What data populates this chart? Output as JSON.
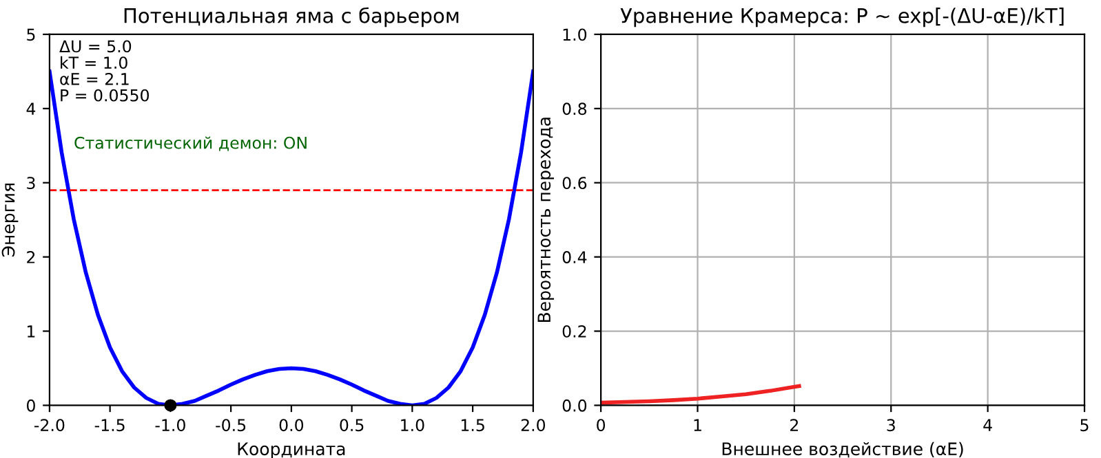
{
  "chart_data": [
    {
      "type": "line",
      "title": "Потенциальная яма с барьером",
      "xlabel": "Координата",
      "ylabel": "Энергия",
      "xlim": [
        -2.0,
        2.0
      ],
      "ylim": [
        0,
        5
      ],
      "xticks": [
        {
          "value": -2,
          "label": "-2.0"
        },
        -1.5,
        {
          "value": -1,
          "label": "-1.0"
        },
        -0.5,
        {
          "value": 0,
          "label": "0.0"
        },
        0.5,
        {
          "value": 1,
          "label": "1.0"
        },
        1.5,
        {
          "value": 2,
          "label": "2.0"
        }
      ],
      "yticks": [
        0,
        1,
        2,
        3,
        4,
        5
      ],
      "grid": false,
      "annotations": [
        "ΔU = 5.0\nkT = 1.0\nαE = 2.1\nP = 0.0550",
        "Статистический демон: ON"
      ],
      "ref_lines": [
        {
          "axis": "y",
          "value": 2.9,
          "color": "#ff0000",
          "line_style": "dashed"
        }
      ],
      "series": [
        {
          "type": "line",
          "color": "#0000ff",
          "x": [
            -2.0,
            -1.9,
            -1.8,
            -1.7,
            -1.6,
            -1.5,
            -1.4,
            -1.3,
            -1.2,
            -1.1,
            -1.0,
            -0.9,
            -0.8,
            -0.7,
            -0.6,
            -0.5,
            -0.4,
            -0.3,
            -0.2,
            -0.1,
            0.0,
            0.1,
            0.2,
            0.3,
            0.4,
            0.5,
            0.6,
            0.7,
            0.8,
            0.9,
            1.0,
            1.1,
            1.2,
            1.3,
            1.4,
            1.5,
            1.6,
            1.7,
            1.8,
            1.9,
            2.0
          ],
          "values": [
            4.5,
            3.41,
            2.51,
            1.79,
            1.22,
            0.78,
            0.46,
            0.24,
            0.1,
            0.02,
            0.0,
            0.02,
            0.06,
            0.13,
            0.2,
            0.28,
            0.35,
            0.41,
            0.46,
            0.49,
            0.5,
            0.49,
            0.46,
            0.41,
            0.35,
            0.28,
            0.2,
            0.13,
            0.06,
            0.02,
            0.0,
            0.02,
            0.1,
            0.24,
            0.46,
            0.78,
            1.22,
            1.79,
            2.51,
            3.41,
            4.5
          ]
        },
        {
          "type": "scatter",
          "color": "#000000",
          "x": [
            -1.0
          ],
          "values": [
            0.0
          ]
        }
      ]
    },
    {
      "type": "line",
      "title": "Уравнение Крамерса: P ~ exp[-(ΔU-αE)/kT]",
      "xlabel": "Внешнее воздействие (αE)",
      "ylabel": "Вероятность перехода",
      "xlim": [
        0,
        5
      ],
      "ylim": [
        0.0,
        1.0
      ],
      "xticks": [
        0,
        1,
        2,
        3,
        4,
        5
      ],
      "yticks": [
        {
          "value": 0,
          "label": "0.0"
        },
        0.2,
        0.4,
        0.6,
        0.8,
        {
          "value": 1,
          "label": "1.0"
        }
      ],
      "grid": true,
      "series": [
        {
          "type": "line",
          "color": "#ee2222",
          "x": [
            0,
            0.25,
            0.5,
            0.75,
            1.0,
            1.25,
            1.5,
            1.75,
            2.0,
            2.05
          ],
          "values": [
            0.007,
            0.009,
            0.011,
            0.014,
            0.018,
            0.024,
            0.03,
            0.039,
            0.05,
            0.052
          ]
        }
      ]
    }
  ]
}
